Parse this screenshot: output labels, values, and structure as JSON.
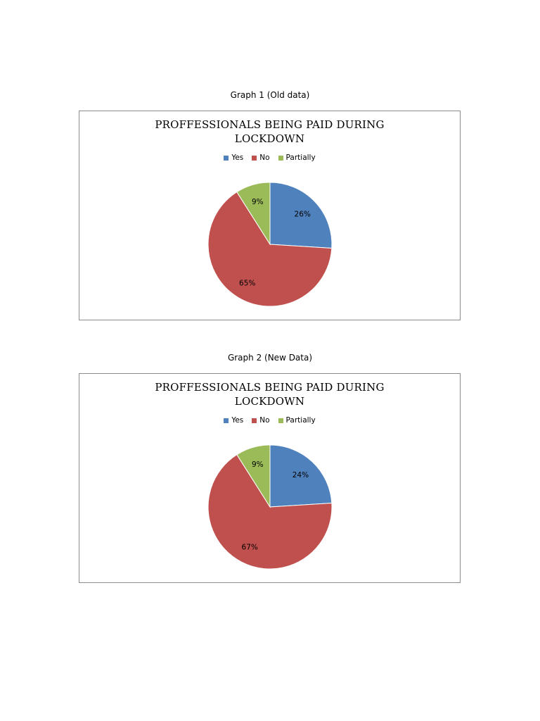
{
  "charts": [
    {
      "caption": "Graph 1 (Old data)",
      "title_line1": "PROFFESSIONALS BEING PAID DURING",
      "title_line2": "LOCKDOWN",
      "legend": [
        {
          "label": "Yes",
          "color": "#4f81bd"
        },
        {
          "label": "No",
          "color": "#c0504d"
        },
        {
          "label": "Partially",
          "color": "#9bbb59"
        }
      ],
      "slices": [
        {
          "label": "Yes",
          "value": 26,
          "data_label": "26%",
          "color": "#4f81bd"
        },
        {
          "label": "No",
          "value": 65,
          "data_label": "65%",
          "color": "#c0504d"
        },
        {
          "label": "Partially",
          "value": 9,
          "data_label": "9%",
          "color": "#9bbb59"
        }
      ]
    },
    {
      "caption": "Graph 2 (New Data)",
      "title_line1": "PROFFESSIONALS BEING PAID DURING",
      "title_line2": "LOCKDOWN",
      "legend": [
        {
          "label": "Yes",
          "color": "#4f81bd"
        },
        {
          "label": "No",
          "color": "#c0504d"
        },
        {
          "label": "Partially",
          "color": "#9bbb59"
        }
      ],
      "slices": [
        {
          "label": "Yes",
          "value": 24,
          "data_label": "24%",
          "color": "#4f81bd"
        },
        {
          "label": "No",
          "value": 67,
          "data_label": "67%",
          "color": "#c0504d"
        },
        {
          "label": "Partially",
          "value": 9,
          "data_label": "9%",
          "color": "#9bbb59"
        }
      ]
    }
  ],
  "chart_data": [
    {
      "type": "pie",
      "title": "PROFFESSIONALS BEING PAID DURING LOCKDOWN",
      "categories": [
        "Yes",
        "No",
        "Partially"
      ],
      "values": [
        26,
        65,
        9
      ],
      "legend": "top"
    },
    {
      "type": "pie",
      "title": "PROFFESSIONALS BEING PAID DURING LOCKDOWN",
      "categories": [
        "Yes",
        "No",
        "Partially"
      ],
      "values": [
        24,
        67,
        9
      ],
      "legend": "top"
    }
  ]
}
